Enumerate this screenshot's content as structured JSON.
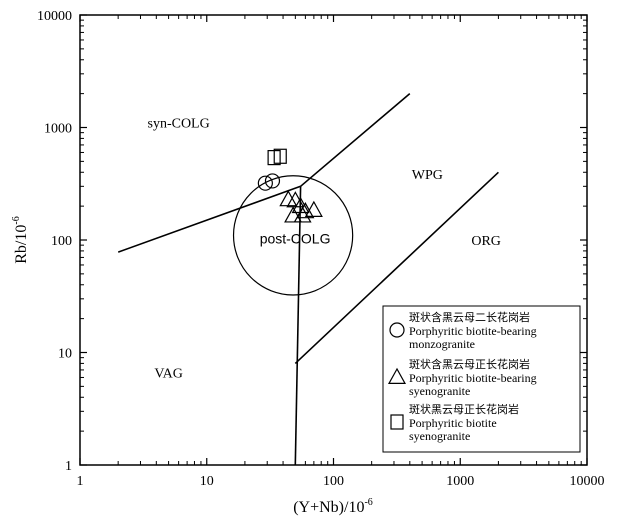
{
  "chart_data": {
    "type": "scatter",
    "x_scale": "log",
    "y_scale": "log",
    "xlim": [
      1,
      10000
    ],
    "ylim": [
      1,
      10000
    ],
    "xlabel": "(Y+Nb)/10",
    "xlabel_exp": "-6",
    "ylabel": "Rb/10",
    "ylabel_exp": "-6",
    "x_ticks": [
      {
        "value": 1,
        "label": "1"
      },
      {
        "value": 10,
        "label": "10"
      },
      {
        "value": 100,
        "label": "100"
      },
      {
        "value": 1000,
        "label": "1000"
      },
      {
        "value": 10000,
        "label": "10000"
      }
    ],
    "y_ticks": [
      {
        "value": 1,
        "label": "1"
      },
      {
        "value": 10,
        "label": "10"
      },
      {
        "value": 100,
        "label": "100"
      },
      {
        "value": 1000,
        "label": "1000"
      },
      {
        "value": 10000,
        "label": "10000"
      }
    ],
    "boundaries": [
      {
        "name": "vag-syncolg-boundary",
        "points": [
          [
            2,
            78
          ],
          [
            55,
            300
          ]
        ]
      },
      {
        "name": "syncolg-wpg-boundary",
        "points": [
          [
            55,
            300
          ],
          [
            400,
            2000
          ]
        ]
      },
      {
        "name": "vag-wpg-boundary",
        "points": [
          [
            55,
            300
          ],
          [
            50,
            1
          ]
        ]
      },
      {
        "name": "wpg-org-boundary",
        "points": [
          [
            2000,
            400
          ],
          [
            50,
            8
          ]
        ]
      }
    ],
    "post_colg_field": {
      "label": "post-COLG",
      "center": [
        48,
        110
      ],
      "log_radius_x": 0.47,
      "log_radius_y": 0.53
    },
    "region_labels": [
      {
        "text": "syn-COLG",
        "x": 6,
        "y": 1000,
        "style": "serif"
      },
      {
        "text": "WPG",
        "x": 550,
        "y": 350,
        "style": "serif"
      },
      {
        "text": "ORG",
        "x": 1600,
        "y": 90,
        "style": "serif"
      },
      {
        "text": "VAG",
        "x": 5,
        "y": 6,
        "style": "serif"
      }
    ],
    "series": [
      {
        "name": "斑状含黑云母二长花岗岩",
        "name_en": "Porphyritic biotite-bearing monzogranite",
        "name_en_lines": [
          "Porphyritic biotite-bearing",
          "monzogranite"
        ],
        "marker": "circle",
        "points": [
          [
            29,
            320
          ],
          [
            33,
            335
          ]
        ]
      },
      {
        "name": "斑状含黑云母正长花岗岩",
        "name_en": "Porphyritic biotite-bearing syenogranite",
        "name_en_lines": [
          "Porphyritic biotite-bearing",
          "syenogranite"
        ],
        "marker": "triangle",
        "points": [
          [
            44,
            230
          ],
          [
            50,
            225
          ],
          [
            55,
            200
          ],
          [
            60,
            180
          ],
          [
            70,
            185
          ],
          [
            48,
            165
          ],
          [
            57,
            165
          ]
        ]
      },
      {
        "name": "斑状黑云母正长花岗岩",
        "name_en": "Porphyritic biotite syenogranite",
        "name_en_lines": [
          "Porphyritic biotite",
          "syenogranite"
        ],
        "marker": "square",
        "points": [
          [
            34,
            540
          ],
          [
            38,
            555
          ]
        ]
      }
    ],
    "grid": false,
    "legend_position": "bottom-right"
  }
}
